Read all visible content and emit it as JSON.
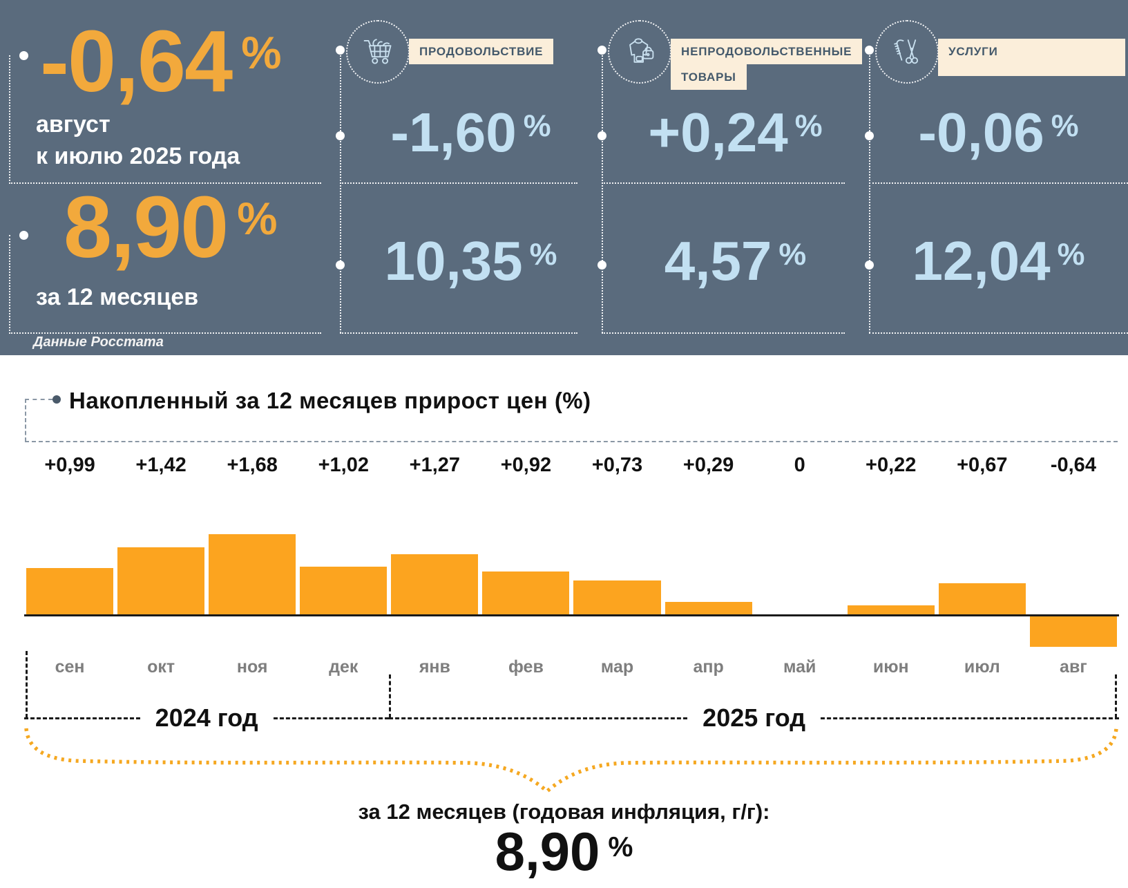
{
  "header": {
    "main": {
      "monthly_value": "-0,64",
      "percent": "%",
      "monthly_caption": [
        "август",
        "к июлю 2025 года"
      ],
      "annual_value": "8,90",
      "annual_caption": "за 12 месяцев",
      "source_note": "Данные Росстата"
    },
    "categories": [
      {
        "label_lines": [
          "ПРОДОВОЛЬСТВИЕ",
          ""
        ],
        "icon": "shopping-cart",
        "monthly": "-1,60",
        "annual": "10,35"
      },
      {
        "label_lines": [
          "НЕПРОДОВОЛЬСТВЕННЫЕ",
          "ТОВАРЫ"
        ],
        "icon": "clothing-and-bag",
        "monthly": "+0,24",
        "annual": "4,57"
      },
      {
        "label_lines": [
          "УСЛУГИ",
          ""
        ],
        "icon": "comb-and-scissors",
        "monthly": "-0,06",
        "annual": "12,04"
      }
    ]
  },
  "chart_data": {
    "type": "bar",
    "title": "Накопленный за 12 месяцев прирост цен (%)",
    "categories": [
      "сен",
      "окт",
      "ноя",
      "дек",
      "янв",
      "фев",
      "мар",
      "апр",
      "май",
      "июн",
      "июл",
      "авг"
    ],
    "values": [
      0.99,
      1.42,
      1.68,
      1.02,
      1.27,
      0.92,
      0.73,
      0.29,
      0,
      0.22,
      0.67,
      -0.64
    ],
    "value_labels": [
      "+0,99",
      "+1,42",
      "+1,68",
      "+1,02",
      "+1,27",
      "+0,92",
      "+0,73",
      "+0,29",
      "0",
      "+0,22",
      "+0,67",
      "-0,64"
    ],
    "year_groups": [
      {
        "label": "2024 год",
        "span": 4
      },
      {
        "label": "2025 год",
        "span": 8
      }
    ],
    "bar_color": "#FCA41F",
    "ylim": [
      -0.8,
      1.8
    ],
    "grid": false,
    "legend": false,
    "xlabel": "",
    "ylabel": ""
  },
  "footer": {
    "caption": "за 12 месяцев (годовая инфляция, г/г):",
    "value": "8,90",
    "percent": "%"
  },
  "colors": {
    "header_bg": "#5A6B7D",
    "accent_orange": "#F2A93C",
    "bar_orange": "#FCA41F",
    "light_blue": "#C2E0F2",
    "label_bg": "#FBEEDA",
    "label_text": "#44596B",
    "dash_gray": "#8A97A5",
    "month_gray": "#7E7E7E"
  }
}
